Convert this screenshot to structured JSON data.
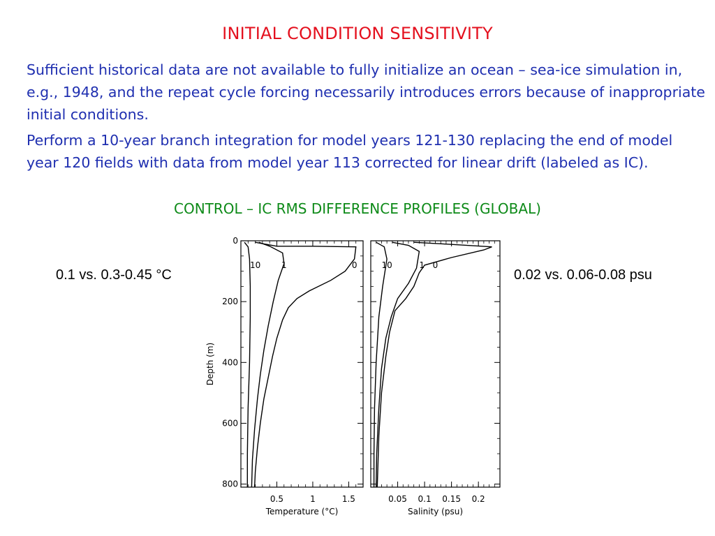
{
  "slide": {
    "title": "INITIAL CONDITION SENSITIVITY",
    "paragraph1": "Sufficient historical data are not available to fully initialize an ocean – sea-ice simulation in, e.g., 1948, and the repeat cycle forcing necessarily introduces errors because of inappropriate initial conditions.",
    "paragraph2": "Perform a 10-year branch integration for model years 121-130 replacing the end of model year 120 fields with data from model year 113 corrected for linear drift (labeled as IC).",
    "subtitle": "CONTROL – IC RMS DIFFERENCE PROFILES (GLOBAL)",
    "left_note": "0.1 vs. 0.3-0.45 °C",
    "right_note": "0.02 vs. 0.06-0.08 psu",
    "colors": {
      "title": "#e4101e",
      "text": "#1f2fb0",
      "subtitle": "#0d8a18"
    }
  },
  "chart_data": [
    {
      "type": "line",
      "xlabel": "Temperature (°C)",
      "ylabel": "Depth (m)",
      "xlim": [
        0,
        1.7
      ],
      "ylim": [
        810,
        0
      ],
      "x_ticks": [
        0.5,
        1,
        1.5
      ],
      "x_tick_labels": [
        "0.5",
        "1",
        "1.5"
      ],
      "y_ticks": [
        0,
        200,
        400,
        600,
        800
      ],
      "y_tick_labels": [
        "0",
        "200",
        "400",
        "600",
        "800"
      ],
      "series": [
        {
          "name": "0",
          "label_pos": [
            1.58,
            80
          ],
          "points": [
            [
              0.2,
              5
            ],
            [
              0.5,
              18
            ],
            [
              1.0,
              18
            ],
            [
              1.6,
              20
            ],
            [
              1.58,
              60
            ],
            [
              1.45,
              100
            ],
            [
              1.25,
              130
            ],
            [
              0.95,
              165
            ],
            [
              0.78,
              190
            ],
            [
              0.66,
              220
            ],
            [
              0.58,
              260
            ],
            [
              0.5,
              320
            ],
            [
              0.44,
              380
            ],
            [
              0.38,
              450
            ],
            [
              0.32,
              520
            ],
            [
              0.27,
              600
            ],
            [
              0.23,
              680
            ],
            [
              0.2,
              760
            ],
            [
              0.19,
              810
            ]
          ]
        },
        {
          "name": "1",
          "label_pos": [
            0.6,
            80
          ],
          "points": [
            [
              0.25,
              5
            ],
            [
              0.4,
              18
            ],
            [
              0.58,
              40
            ],
            [
              0.6,
              75
            ],
            [
              0.52,
              130
            ],
            [
              0.45,
              200
            ],
            [
              0.38,
              280
            ],
            [
              0.32,
              360
            ],
            [
              0.27,
              440
            ],
            [
              0.23,
              520
            ],
            [
              0.19,
              620
            ],
            [
              0.16,
              720
            ],
            [
              0.15,
              810
            ]
          ]
        },
        {
          "name": "10",
          "label_pos": [
            0.2,
            80
          ],
          "points": [
            [
              0.05,
              5
            ],
            [
              0.1,
              20
            ],
            [
              0.12,
              60
            ],
            [
              0.13,
              150
            ],
            [
              0.13,
              250
            ],
            [
              0.12,
              400
            ],
            [
              0.1,
              550
            ],
            [
              0.09,
              700
            ],
            [
              0.09,
              810
            ]
          ]
        }
      ]
    },
    {
      "type": "line",
      "xlabel": "Salinity (psu)",
      "ylabel": "",
      "xlim": [
        0,
        0.24
      ],
      "ylim": [
        810,
        0
      ],
      "x_ticks": [
        0.05,
        0.1,
        0.15,
        0.2
      ],
      "x_tick_labels": [
        "0.05",
        "0.1",
        "0.15",
        "0.2"
      ],
      "y_ticks": [
        0,
        200,
        400,
        600,
        800
      ],
      "y_tick_labels": [],
      "series": [
        {
          "name": "0",
          "label_pos": [
            0.12,
            80
          ],
          "points": [
            [
              0.08,
              5
            ],
            [
              0.15,
              12
            ],
            [
              0.225,
              20
            ],
            [
              0.21,
              30
            ],
            [
              0.15,
              55
            ],
            [
              0.1,
              80
            ],
            [
              0.09,
              105
            ],
            [
              0.08,
              150
            ],
            [
              0.065,
              190
            ],
            [
              0.045,
              230
            ],
            [
              0.035,
              300
            ],
            [
              0.028,
              380
            ],
            [
              0.02,
              500
            ],
            [
              0.015,
              640
            ],
            [
              0.012,
              810
            ]
          ]
        },
        {
          "name": "1",
          "label_pos": [
            0.095,
            80
          ],
          "points": [
            [
              0.04,
              5
            ],
            [
              0.07,
              15
            ],
            [
              0.09,
              35
            ],
            [
              0.085,
              90
            ],
            [
              0.07,
              140
            ],
            [
              0.05,
              190
            ],
            [
              0.038,
              250
            ],
            [
              0.028,
              320
            ],
            [
              0.02,
              420
            ],
            [
              0.015,
              550
            ],
            [
              0.011,
              700
            ],
            [
              0.01,
              810
            ]
          ]
        },
        {
          "name": "10",
          "label_pos": [
            0.03,
            80
          ],
          "points": [
            [
              0.01,
              5
            ],
            [
              0.025,
              20
            ],
            [
              0.03,
              60
            ],
            [
              0.022,
              150
            ],
            [
              0.015,
              250
            ],
            [
              0.01,
              400
            ],
            [
              0.007,
              550
            ],
            [
              0.006,
              700
            ],
            [
              0.006,
              810
            ]
          ]
        }
      ]
    }
  ]
}
